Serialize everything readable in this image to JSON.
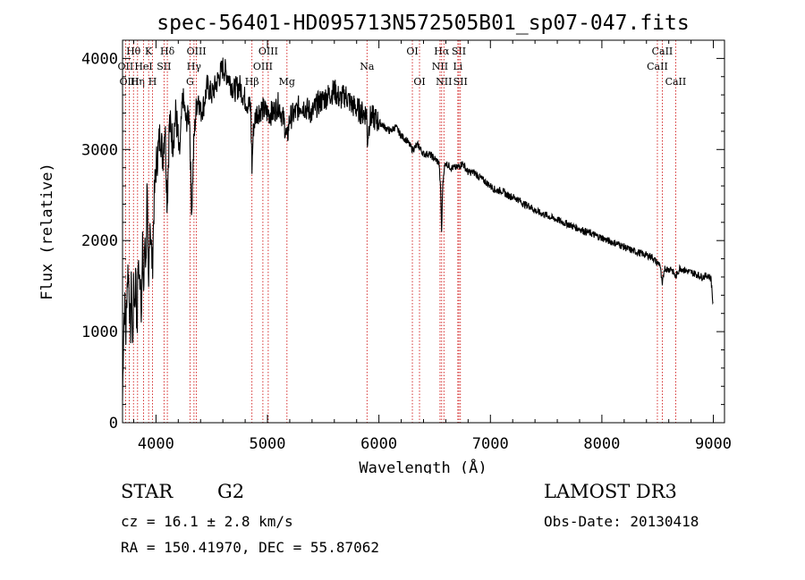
{
  "chart_data": {
    "type": "line",
    "title": "spec-56401-HD095713N572505B01_sp07-047.fits",
    "xlabel": "Wavelength (Å)",
    "ylabel": "Flux (relative)",
    "xlim": [
      3700,
      9100
    ],
    "ylim": [
      0,
      4200
    ],
    "xticks": [
      4000,
      5000,
      6000,
      7000,
      8000,
      9000
    ],
    "yticks": [
      0,
      1000,
      2000,
      3000,
      4000
    ],
    "series": [
      {
        "name": "flux",
        "x": [
          3700,
          3710,
          3720,
          3730,
          3740,
          3750,
          3760,
          3770,
          3780,
          3790,
          3800,
          3810,
          3820,
          3830,
          3840,
          3850,
          3860,
          3870,
          3880,
          3890,
          3900,
          3910,
          3920,
          3933,
          3945,
          3955,
          3968,
          3980,
          3990,
          4000,
          4020,
          4040,
          4060,
          4080,
          4101,
          4120,
          4150,
          4180,
          4210,
          4240,
          4270,
          4300,
          4320,
          4340,
          4360,
          4380,
          4400,
          4430,
          4460,
          4500,
          4550,
          4600,
          4650,
          4700,
          4750,
          4800,
          4850,
          4861,
          4875,
          4900,
          4950,
          5000,
          5050,
          5100,
          5150,
          5175,
          5200,
          5250,
          5300,
          5350,
          5400,
          5450,
          5500,
          5550,
          5600,
          5650,
          5700,
          5750,
          5800,
          5850,
          5890,
          5896,
          5920,
          5950,
          6000,
          6050,
          6100,
          6150,
          6200,
          6250,
          6300,
          6350,
          6400,
          6450,
          6500,
          6540,
          6555,
          6563,
          6570,
          6585,
          6600,
          6650,
          6700,
          6750,
          6800,
          6850,
          6900,
          6950,
          7000,
          7050,
          7100,
          7150,
          7200,
          7250,
          7300,
          7350,
          7400,
          7450,
          7500,
          7550,
          7600,
          7650,
          7700,
          7750,
          7800,
          7850,
          7900,
          7950,
          8000,
          8050,
          8100,
          8150,
          8200,
          8250,
          8300,
          8350,
          8400,
          8450,
          8498,
          8520,
          8542,
          8560,
          8600,
          8620,
          8662,
          8700,
          8750,
          8800,
          8850,
          8900,
          8950,
          8980,
          9000
        ],
        "values": [
          250,
          1100,
          1300,
          950,
          1500,
          1700,
          1450,
          900,
          1600,
          800,
          1500,
          1300,
          1700,
          900,
          1900,
          1500,
          1700,
          1200,
          1900,
          1400,
          2100,
          1700,
          2600,
          1300,
          2300,
          2000,
          1700,
          2300,
          2600,
          2800,
          3000,
          3200,
          2900,
          3300,
          2400,
          3300,
          3100,
          3400,
          2900,
          3600,
          3300,
          3400,
          2300,
          3100,
          3450,
          3600,
          3400,
          3500,
          3700,
          3600,
          3750,
          3900,
          3800,
          3650,
          3700,
          3550,
          3450,
          2800,
          3250,
          3400,
          3450,
          3400,
          3400,
          3500,
          3300,
          3100,
          3350,
          3400,
          3500,
          3450,
          3400,
          3500,
          3550,
          3600,
          3650,
          3550,
          3600,
          3500,
          3450,
          3400,
          3400,
          3100,
          3350,
          3350,
          3300,
          3250,
          3200,
          3250,
          3150,
          3100,
          3000,
          3050,
          2950,
          2950,
          2900,
          2850,
          2500,
          2050,
          2550,
          2800,
          2850,
          2800,
          2800,
          2850,
          2750,
          2750,
          2700,
          2650,
          2600,
          2550,
          2550,
          2500,
          2480,
          2450,
          2400,
          2380,
          2330,
          2300,
          2280,
          2250,
          2230,
          2200,
          2180,
          2150,
          2130,
          2100,
          2080,
          2050,
          2030,
          2000,
          1980,
          1960,
          1930,
          1900,
          1880,
          1860,
          1840,
          1820,
          1750,
          1750,
          1500,
          1700,
          1680,
          1700,
          1600,
          1700,
          1670,
          1650,
          1630,
          1600,
          1620,
          1580,
          1250
        ]
      }
    ],
    "lines": [
      {
        "label": "Hθ",
        "wave": 3798,
        "row": 0
      },
      {
        "label": "OII",
        "wave": 3727,
        "row": 1
      },
      {
        "label": "OIII",
        "wave": 3760,
        "row": 2
      },
      {
        "label": "Hη",
        "wave": 3835,
        "row": 2
      },
      {
        "label": "K",
        "wave": 3934,
        "row": 0
      },
      {
        "label": "HeI",
        "wave": 3889,
        "row": 1
      },
      {
        "label": "H",
        "wave": 3969,
        "row": 2
      },
      {
        "label": "Hδ",
        "wave": 4102,
        "row": 0
      },
      {
        "label": "SII",
        "wave": 4072,
        "row": 1
      },
      {
        "label": "OIII",
        "wave": 4363,
        "row": 0
      },
      {
        "label": "Hγ",
        "wave": 4341,
        "row": 1
      },
      {
        "label": "G",
        "wave": 4305,
        "row": 2
      },
      {
        "label": "OIII",
        "wave": 5007,
        "row": 0
      },
      {
        "label": "OIII",
        "wave": 4959,
        "row": 1
      },
      {
        "label": "Hβ",
        "wave": 4861,
        "row": 2
      },
      {
        "label": "Mg",
        "wave": 5175,
        "row": 2
      },
      {
        "label": "Na",
        "wave": 5893,
        "row": 1
      },
      {
        "label": "OI",
        "wave": 6300,
        "row": 0
      },
      {
        "label": "OI",
        "wave": 6364,
        "row": 2
      },
      {
        "label": "Hα",
        "wave": 6563,
        "row": 0
      },
      {
        "label": "SII",
        "wave": 6717,
        "row": 0
      },
      {
        "label": "NII",
        "wave": 6548,
        "row": 1
      },
      {
        "label": "Li",
        "wave": 6708,
        "row": 1
      },
      {
        "label": "NII",
        "wave": 6583,
        "row": 2
      },
      {
        "label": "SII",
        "wave": 6731,
        "row": 2
      },
      {
        "label": "CaII",
        "wave": 8542,
        "row": 0
      },
      {
        "label": "CaII",
        "wave": 8498,
        "row": 1
      },
      {
        "label": "CaII",
        "wave": 8662,
        "row": 2
      }
    ],
    "line_color": "#cc0000"
  },
  "info": {
    "class": "STAR",
    "subclass": "G2",
    "cz": "cz = 16.1 ± 2.8 km/s",
    "coords": "RA = 150.41970, DEC =  55.87062",
    "survey": "LAMOST DR3",
    "obsdate": "Obs-Date: 20130418"
  }
}
